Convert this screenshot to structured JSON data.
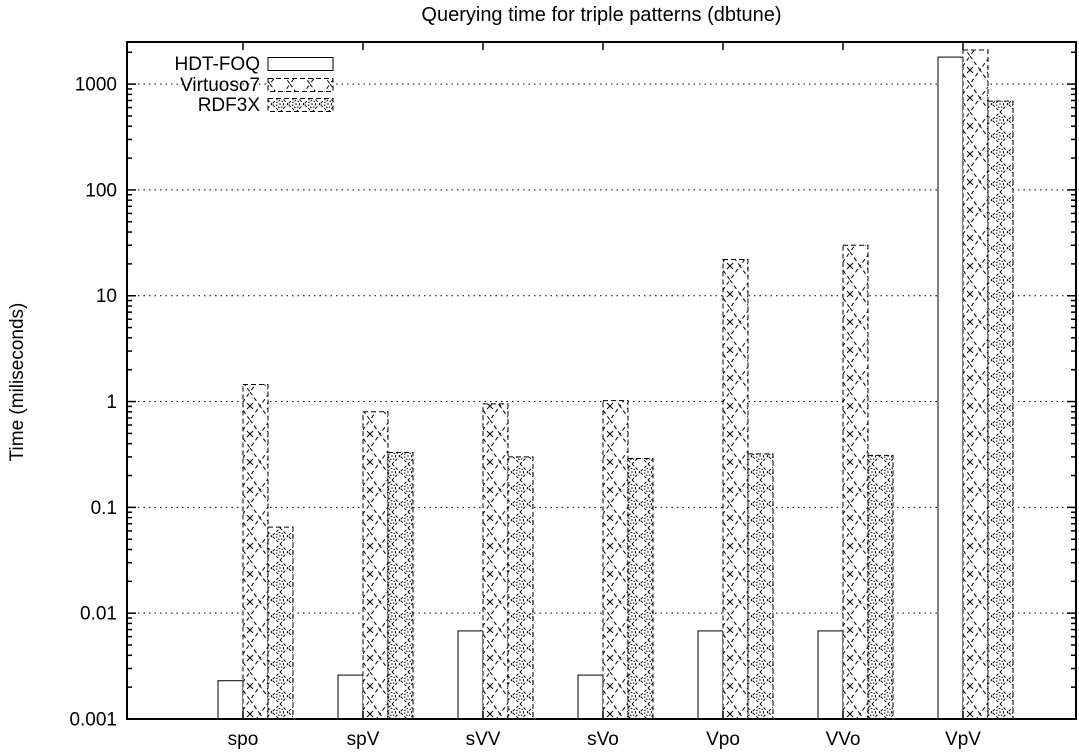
{
  "chart_data": {
    "type": "bar",
    "title": "Querying time for triple patterns (dbtune)",
    "xlabel": "",
    "ylabel": "Time (miliseconds)",
    "y_scale": "log",
    "ylim": [
      0.001,
      2500
    ],
    "grid": true,
    "legend_position": "top-left-inside",
    "ytick_exponents": [
      3,
      2,
      1,
      0,
      -1,
      -2,
      -3
    ],
    "ytick_labels": [
      "1000",
      "100",
      "10",
      "1",
      "0.1",
      "0.01",
      "0.001"
    ],
    "categories": [
      "spo",
      "spV",
      "sVV",
      "sVo",
      "Vpo",
      "VVo",
      "VpV"
    ],
    "series": [
      {
        "name": "HDT-FOQ",
        "pattern": "solid-white",
        "values": [
          0.0023,
          0.0026,
          0.0068,
          0.0026,
          0.0068,
          0.0068,
          1800
        ]
      },
      {
        "name": "Virtuoso7",
        "pattern": "crosshatch-x",
        "values": [
          1.45,
          0.8,
          0.95,
          1.02,
          22,
          30,
          2100
        ]
      },
      {
        "name": "RDF3X",
        "pattern": "diamond-dot",
        "values": [
          0.065,
          0.33,
          0.3,
          0.29,
          0.32,
          0.31,
          690
        ]
      }
    ],
    "colors": {
      "foreground": "#000000",
      "background": "#ffffff"
    }
  }
}
